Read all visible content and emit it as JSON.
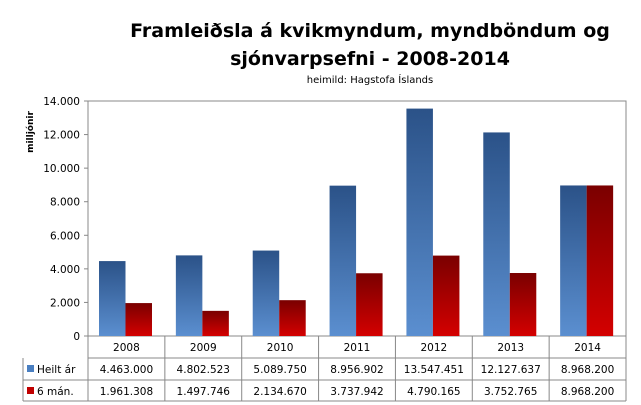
{
  "chart_data": {
    "type": "bar",
    "title_line1": "Framleiðsla á kvikmyndum, myndböndum og",
    "title_line2": "sjónvarpsefni - 2008-2014",
    "subtitle": "heimild: Hagstofa Íslands",
    "ylabel": "milljónir",
    "xlabel": "",
    "ylim": [
      0,
      14000
    ],
    "yticks": [
      0,
      2000,
      4000,
      6000,
      8000,
      10000,
      12000,
      14000
    ],
    "ytick_labels": [
      "0",
      "2.000",
      "4.000",
      "6.000",
      "8.000",
      "10.000",
      "12.000",
      "14.000"
    ],
    "categories": [
      "2008",
      "2009",
      "2010",
      "2011",
      "2012",
      "2013",
      "2014"
    ],
    "series": [
      {
        "name": "Heilt ár",
        "color": "#4a7fc1",
        "values": [
          4463.0,
          4802.523,
          5089.75,
          8956.902,
          13547.451,
          12127.637,
          8968.2
        ],
        "labels": [
          "4.463.000",
          "4.802.523",
          "5.089.750",
          "8.956.902",
          "13.547.451",
          "12.127.637",
          "8.968.200"
        ]
      },
      {
        "name": "6 mán.",
        "color": "#c00000",
        "values": [
          1961.308,
          1497.746,
          2134.67,
          3737.942,
          4790.165,
          3752.765,
          8968.2
        ],
        "labels": [
          "1.961.308",
          "1.497.746",
          "2.134.670",
          "3.737.942",
          "4.790.165",
          "3.752.765",
          "8.968.200"
        ]
      }
    ],
    "grid": false,
    "legend": "data-table"
  }
}
